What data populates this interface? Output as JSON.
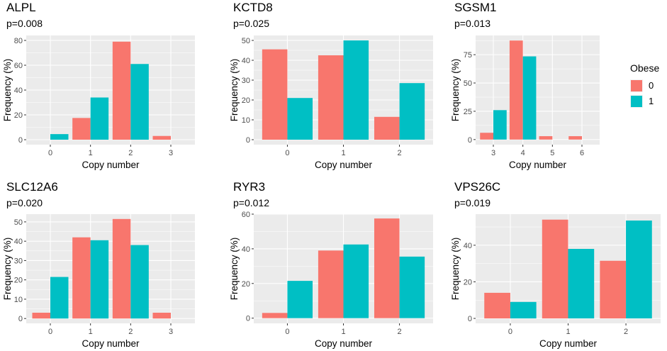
{
  "legend": {
    "title": "Obese",
    "entries": [
      {
        "label": "0",
        "color": "#F8766D"
      },
      {
        "label": "1",
        "color": "#00BFC4"
      }
    ]
  },
  "chart_data": [
    {
      "type": "bar",
      "title": "ALPL",
      "subtitle": "p=0.008",
      "xlabel": "Copy number",
      "ylabel": "Frequency (%)",
      "categories": [
        "0",
        "1",
        "2",
        "3"
      ],
      "series": [
        {
          "name": "0",
          "values": [
            null,
            17.5,
            79,
            3
          ]
        },
        {
          "name": "1",
          "values": [
            4.5,
            34,
            61,
            null
          ]
        }
      ],
      "ylim": [
        -4,
        84
      ],
      "yticks": [
        0,
        20,
        40,
        60,
        80
      ],
      "grid": true
    },
    {
      "type": "bar",
      "title": "KCTD8",
      "subtitle": "p=0.025",
      "xlabel": "Copy number",
      "ylabel": "Frequency (%)",
      "categories": [
        "0",
        "1",
        "2"
      ],
      "series": [
        {
          "name": "0",
          "values": [
            45.5,
            42.5,
            11.5
          ]
        },
        {
          "name": "1",
          "values": [
            21,
            50,
            28.5
          ]
        }
      ],
      "ylim": [
        -2.5,
        52.5
      ],
      "yticks": [
        0,
        10,
        20,
        30,
        40,
        50
      ],
      "grid": true
    },
    {
      "type": "bar",
      "title": "SGSM1",
      "subtitle": "p=0.013",
      "xlabel": "Copy number",
      "ylabel": "Frequency (%)",
      "categories": [
        "3",
        "4",
        "5",
        "6"
      ],
      "series": [
        {
          "name": "0",
          "values": [
            6,
            87.5,
            3,
            3
          ]
        },
        {
          "name": "1",
          "values": [
            26,
            73.5,
            null,
            null
          ]
        }
      ],
      "ylim": [
        -4.5,
        92
      ],
      "yticks": [
        0,
        25,
        50,
        75
      ],
      "grid": true
    },
    {
      "type": "bar",
      "title": "SLC12A6",
      "subtitle": "p=0.020",
      "xlabel": "Copy number",
      "ylabel": "Frequency (%)",
      "categories": [
        "0",
        "1",
        "2",
        "3"
      ],
      "series": [
        {
          "name": "0",
          "values": [
            3,
            42,
            51.5,
            3
          ]
        },
        {
          "name": "1",
          "values": [
            21.5,
            40.5,
            38,
            null
          ]
        }
      ],
      "ylim": [
        -2.5,
        54
      ],
      "yticks": [
        0,
        10,
        20,
        30,
        40,
        50
      ],
      "grid": true
    },
    {
      "type": "bar",
      "title": "RYR3",
      "subtitle": "p=0.012",
      "xlabel": "Copy number",
      "ylabel": "Frequency (%)",
      "categories": [
        "0",
        "1",
        "2"
      ],
      "series": [
        {
          "name": "0",
          "values": [
            3,
            39,
            57.5
          ]
        },
        {
          "name": "1",
          "values": [
            21.5,
            42.5,
            35.5
          ]
        }
      ],
      "ylim": [
        -3,
        60
      ],
      "yticks": [
        0,
        20,
        40,
        60
      ],
      "grid": true
    },
    {
      "type": "bar",
      "title": "VPS26C",
      "subtitle": "p=0.019",
      "xlabel": "Copy number",
      "ylabel": "Frequency (%)",
      "categories": [
        "0",
        "1",
        "2"
      ],
      "series": [
        {
          "name": "0",
          "values": [
            14,
            54,
            31.5
          ]
        },
        {
          "name": "1",
          "values": [
            9,
            38,
            53.5
          ]
        }
      ],
      "ylim": [
        -2.7,
        57
      ],
      "yticks": [
        0,
        20,
        40
      ],
      "grid": true
    }
  ]
}
